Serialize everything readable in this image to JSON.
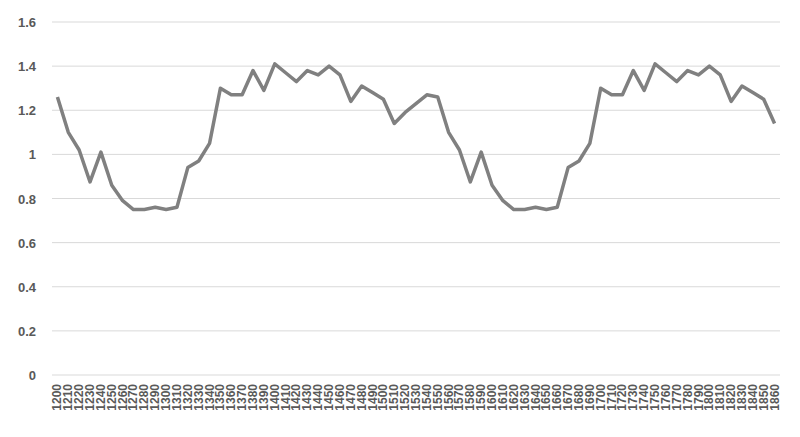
{
  "chart_data": {
    "type": "line",
    "categories": [
      "1200",
      "1210",
      "1220",
      "1230",
      "1240",
      "1250",
      "1260",
      "1270",
      "1280",
      "1290",
      "1300",
      "1310",
      "1320",
      "1330",
      "1340",
      "1350",
      "1360",
      "1370",
      "1380",
      "1390",
      "1400",
      "1410",
      "1420",
      "1430",
      "1440",
      "1450",
      "1460",
      "1470",
      "1480",
      "1490",
      "1500",
      "1510",
      "1520",
      "1530",
      "1540",
      "1550",
      "1560",
      "1570",
      "1580",
      "1590",
      "1600",
      "1610",
      "1620",
      "1630",
      "1640",
      "1650",
      "1660",
      "1670",
      "1680",
      "1690",
      "1700",
      "1710",
      "1720",
      "1730",
      "1740",
      "1750",
      "1760",
      "1770",
      "1780",
      "1790",
      "1800",
      "1810",
      "1820",
      "1830",
      "1840",
      "1850",
      "1860"
    ],
    "values": [
      1.26,
      1.1,
      1.02,
      0.875,
      1.01,
      0.86,
      0.79,
      0.75,
      0.75,
      0.76,
      0.75,
      0.76,
      0.94,
      0.97,
      1.05,
      1.3,
      1.27,
      1.27,
      1.38,
      1.29,
      1.41,
      1.37,
      1.33,
      1.38,
      1.36,
      1.4,
      1.36,
      1.24,
      1.31,
      1.28,
      1.25,
      1.14,
      1.19,
      1.23,
      1.27,
      1.26,
      1.1,
      1.02,
      0.875,
      1.01,
      0.86,
      0.79,
      0.75,
      0.75,
      0.76,
      0.75,
      0.76,
      0.94,
      0.97,
      1.05,
      1.3,
      1.27,
      1.27,
      1.38,
      1.29,
      1.41,
      1.37,
      1.33,
      1.38,
      1.36,
      1.4,
      1.36,
      1.24,
      1.31,
      1.28,
      1.25,
      1.14
    ],
    "color": "#808080",
    "ylim": [
      0,
      1.6
    ],
    "yticks": [
      0,
      0.2,
      0.4,
      0.6,
      0.8,
      1,
      1.2,
      1.4,
      1.6
    ],
    "grid": true
  }
}
